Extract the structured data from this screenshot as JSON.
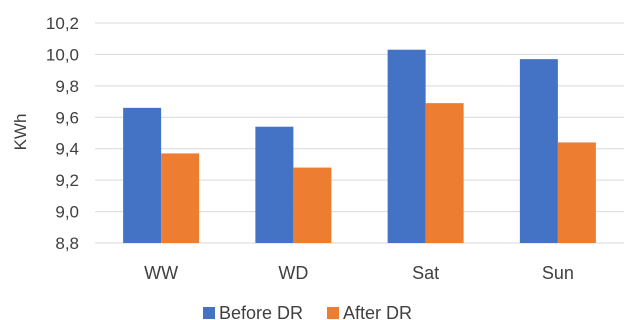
{
  "chart_data": {
    "type": "bar",
    "title": "",
    "xlabel": "",
    "ylabel": "KWh",
    "categories": [
      "WW",
      "WD",
      "Sat",
      "Sun"
    ],
    "series": [
      {
        "name": "Before DR",
        "color": "#4472C4",
        "values": [
          9.66,
          9.54,
          10.03,
          9.97
        ]
      },
      {
        "name": "After DR",
        "color": "#ED7D31",
        "values": [
          9.37,
          9.28,
          9.69,
          9.44
        ]
      }
    ],
    "ylim": [
      8.8,
      10.2
    ],
    "yticks": [
      "8,8",
      "9,0",
      "9,2",
      "9,4",
      "9,6",
      "9,8",
      "10,0",
      "10,2"
    ],
    "grid": true,
    "gridColor": "#d9d9d9",
    "legend": "bottom"
  }
}
